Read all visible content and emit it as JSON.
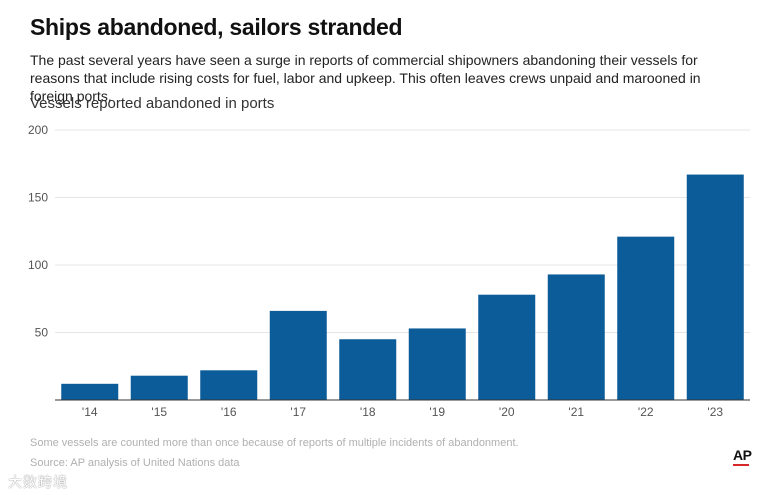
{
  "header": {
    "title": "Ships abandoned, sailors stranded",
    "subtitle": "The past several years have seen a surge in reports of commercial shipowners abandoning their vessels for reasons that include rising costs for fuel, labor and upkeep. This often leaves crews unpaid and marooned in foreign ports."
  },
  "chart_data": {
    "type": "bar",
    "title": "Vessels reported abandoned in ports",
    "xlabel": "",
    "ylabel": "",
    "categories": [
      "'14",
      "'15",
      "'16",
      "'17",
      "'18",
      "'19",
      "'20",
      "'21",
      "'22",
      "'23"
    ],
    "values": [
      12,
      18,
      22,
      66,
      45,
      53,
      78,
      93,
      121,
      167
    ],
    "ylim": [
      0,
      200
    ],
    "yticks": [
      50,
      100,
      150,
      200
    ],
    "grid": true,
    "legend": "none",
    "bar_color": "#0b5c98"
  },
  "footer": {
    "note": "Some vessels are counted more than once because of reports of multiple incidents of abandonment.",
    "source": "Source: AP analysis of United Nations data",
    "logo": "AP",
    "watermark": "大数跨境"
  }
}
